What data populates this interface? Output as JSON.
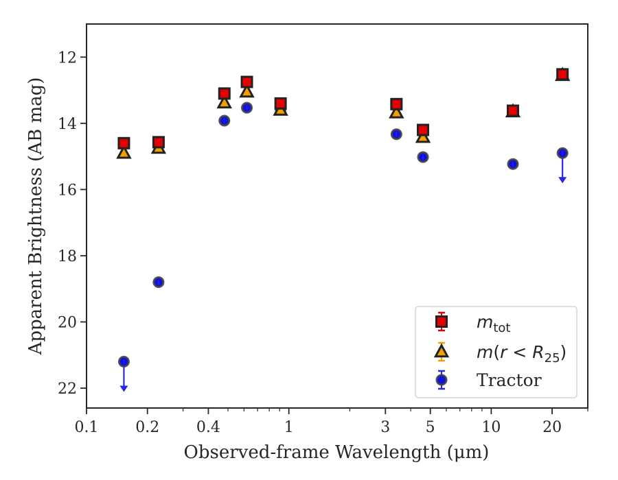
{
  "chart_data": {
    "type": "scatter",
    "xscale": "log",
    "xlim": [
      0.1,
      30
    ],
    "ylim": [
      22.6,
      11.0
    ],
    "y_inverted": true,
    "xlabel": "Observed-frame Wavelength (μm)",
    "ylabel": "Apparent Brightness (AB mag)",
    "x_ticks": [
      {
        "value": 0.1,
        "label": "0.1"
      },
      {
        "value": 0.2,
        "label": "0.2"
      },
      {
        "value": 0.4,
        "label": "0.4"
      },
      {
        "value": 1,
        "label": "1"
      },
      {
        "value": 3,
        "label": "3"
      },
      {
        "value": 5,
        "label": "5"
      },
      {
        "value": 10,
        "label": "10"
      },
      {
        "value": 20,
        "label": "20"
      }
    ],
    "x_minor_ticks": [
      0.3,
      0.5,
      0.6,
      0.7,
      0.8,
      0.9,
      2,
      4,
      6,
      7,
      8,
      9,
      30
    ],
    "y_ticks": [
      {
        "value": 12,
        "label": "12"
      },
      {
        "value": 14,
        "label": "14"
      },
      {
        "value": 16,
        "label": "16"
      },
      {
        "value": 18,
        "label": "18"
      },
      {
        "value": 20,
        "label": "20"
      },
      {
        "value": 22,
        "label": "22"
      }
    ],
    "grid": false,
    "legend_position": "bottom-right",
    "series": [
      {
        "name": "m_tot",
        "marker": "square",
        "color": "#e60000",
        "edge_color": "#222222",
        "points": [
          {
            "x": 0.153,
            "y": 14.6
          },
          {
            "x": 0.227,
            "y": 14.57
          },
          {
            "x": 0.48,
            "y": 13.1
          },
          {
            "x": 0.62,
            "y": 12.75
          },
          {
            "x": 0.91,
            "y": 13.4
          },
          {
            "x": 3.4,
            "y": 13.42
          },
          {
            "x": 4.6,
            "y": 14.2
          },
          {
            "x": 12.8,
            "y": 13.62
          },
          {
            "x": 22.5,
            "y": 12.52
          }
        ]
      },
      {
        "name": "m(r < R25)",
        "marker": "triangle",
        "color": "#f2a000",
        "edge_color": "#222222",
        "points": [
          {
            "x": 0.153,
            "y": 14.9
          },
          {
            "x": 0.227,
            "y": 14.75
          },
          {
            "x": 0.48,
            "y": 13.38
          },
          {
            "x": 0.62,
            "y": 13.05
          },
          {
            "x": 0.91,
            "y": 13.6
          },
          {
            "x": 3.4,
            "y": 13.68
          },
          {
            "x": 4.6,
            "y": 14.42
          },
          {
            "x": 12.8,
            "y": 13.65
          },
          {
            "x": 22.5,
            "y": 12.55
          }
        ]
      },
      {
        "name": "Tractor",
        "marker": "circle",
        "color": "#1010e6",
        "edge_color": "#444444",
        "points": [
          {
            "x": 0.153,
            "y": 21.2,
            "upper_limit": true
          },
          {
            "x": 0.227,
            "y": 18.8
          },
          {
            "x": 0.48,
            "y": 13.92
          },
          {
            "x": 0.62,
            "y": 13.53
          },
          {
            "x": 0.91,
            "y": 13.58
          },
          {
            "x": 3.4,
            "y": 14.33
          },
          {
            "x": 4.6,
            "y": 15.02
          },
          {
            "x": 12.8,
            "y": 15.23
          },
          {
            "x": 22.5,
            "y": 14.9,
            "upper_limit": true
          }
        ]
      }
    ]
  },
  "legend": {
    "mtot_base": "m",
    "mtot_sub": "tot",
    "mr_base": "m",
    "mr_paren_open": "(",
    "mr_r": "r",
    "mr_lt": " < ",
    "mr_R": "R",
    "mr_sub": "25",
    "mr_paren_close": ")",
    "tractor": "Tractor"
  }
}
